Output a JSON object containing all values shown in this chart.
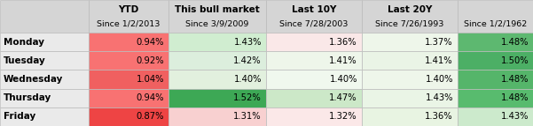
{
  "rows": [
    "Monday",
    "Tuesday",
    "Wednesday",
    "Thursday",
    "Friday"
  ],
  "col_headers_line1": [
    "YTD",
    "This bull market",
    "Last 10Y",
    "Last 20Y",
    ""
  ],
  "col_headers_line2": [
    "Since 1/2/2013",
    "Since 3/9/2009",
    "Since 7/28/2003",
    "Since 7/26/1993",
    "Since 1/2/1962"
  ],
  "values": [
    [
      0.94,
      1.43,
      1.36,
      1.37,
      1.48
    ],
    [
      0.92,
      1.42,
      1.41,
      1.41,
      1.5
    ],
    [
      1.04,
      1.4,
      1.4,
      1.4,
      1.48
    ],
    [
      0.94,
      1.52,
      1.47,
      1.43,
      1.48
    ],
    [
      0.87,
      1.31,
      1.32,
      1.36,
      1.43
    ]
  ],
  "cell_colors": [
    [
      "#F87272",
      "#D0EDD0",
      "#FAE8E8",
      "#EEF6EA",
      "#5DB870"
    ],
    [
      "#F87272",
      "#DCEEDD",
      "#EEF6EA",
      "#EAF4E6",
      "#4CAF65"
    ],
    [
      "#F06060",
      "#E2F0DE",
      "#F0F8EE",
      "#EEF6EA",
      "#55B56A"
    ],
    [
      "#F87272",
      "#3DA855",
      "#CCE8C8",
      "#EAF5E6",
      "#58BB6E"
    ],
    [
      "#EE4444",
      "#F8D0D0",
      "#FBE8E8",
      "#E8F4E2",
      "#CCEACC"
    ]
  ],
  "header_bg": "#D5D5D5",
  "row_label_bg": "#EAEAEA",
  "border_color": "#BBBBBB",
  "figsize": [
    6.01,
    1.43
  ],
  "dpi": 100,
  "font_size_header1": 7.5,
  "font_size_header2": 6.8,
  "font_size_data": 7.2,
  "font_size_row": 7.5
}
